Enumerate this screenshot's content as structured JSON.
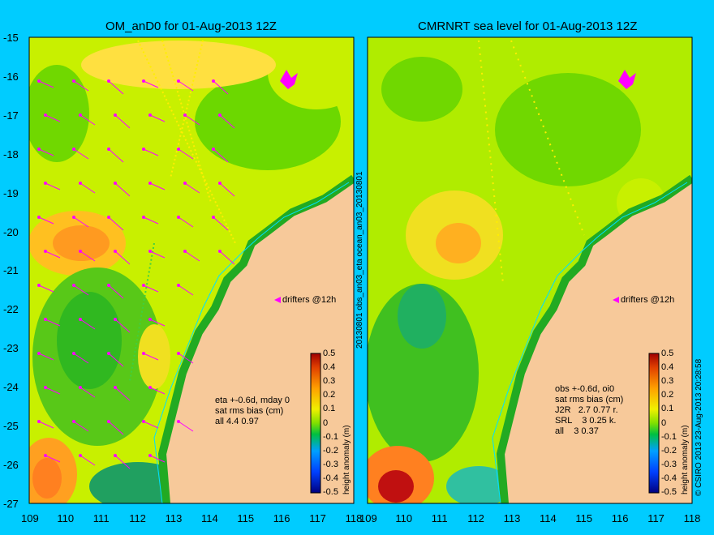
{
  "left_panel": {
    "title": "OM_anD0 for 01-Aug-2013 12Z",
    "stats_lines": [
      "eta +-0.6d, mday 0",
      "sat rms bias (cm)",
      "all 4.4 0.97"
    ],
    "drifters_label": "drifters @12h",
    "colorbar_label": "height anomaly (m)"
  },
  "right_panel": {
    "title": "CMRNRT sea level  for 01-Aug-2013 12Z",
    "stats_lines": [
      "obs +-0.6d, oi0",
      "sat rms bias (cm)",
      "J2R   2.7 0.77 r.",
      "SRL    3 0.25 k.",
      "all    3 0.37"
    ],
    "drifters_label": "drifters @12h",
    "colorbar_label": "height anomaly (m)"
  },
  "side_label": "20130801 obs_an03_eta     ocean_an03_20130801",
  "credit": "© CSIRO 2013   23-Aug-2013 20:28:58",
  "y_ticks": [
    "-15",
    "-16",
    "-17",
    "-18",
    "-19",
    "-20",
    "-21",
    "-22",
    "-23",
    "-24",
    "-25",
    "-26",
    "-27"
  ],
  "x_ticks": [
    "109",
    "110",
    "111",
    "112",
    "113",
    "114",
    "115",
    "116",
    "117",
    "118"
  ],
  "colorbar_ticks": [
    "0.5",
    "0.4",
    "0.3",
    "0.2",
    "0.1",
    "0",
    "-0.1",
    "-0.2",
    "-0.3",
    "-0.4",
    "-0.5"
  ],
  "colors": {
    "background": "#00ccff",
    "land": "#f7c99a",
    "ocean_mid": "#c8f000",
    "ocean_low": "#30c820",
    "ocean_high": "#ffb020",
    "drifter": "#ff00ff",
    "coast_contour": "#00e0ff"
  }
}
